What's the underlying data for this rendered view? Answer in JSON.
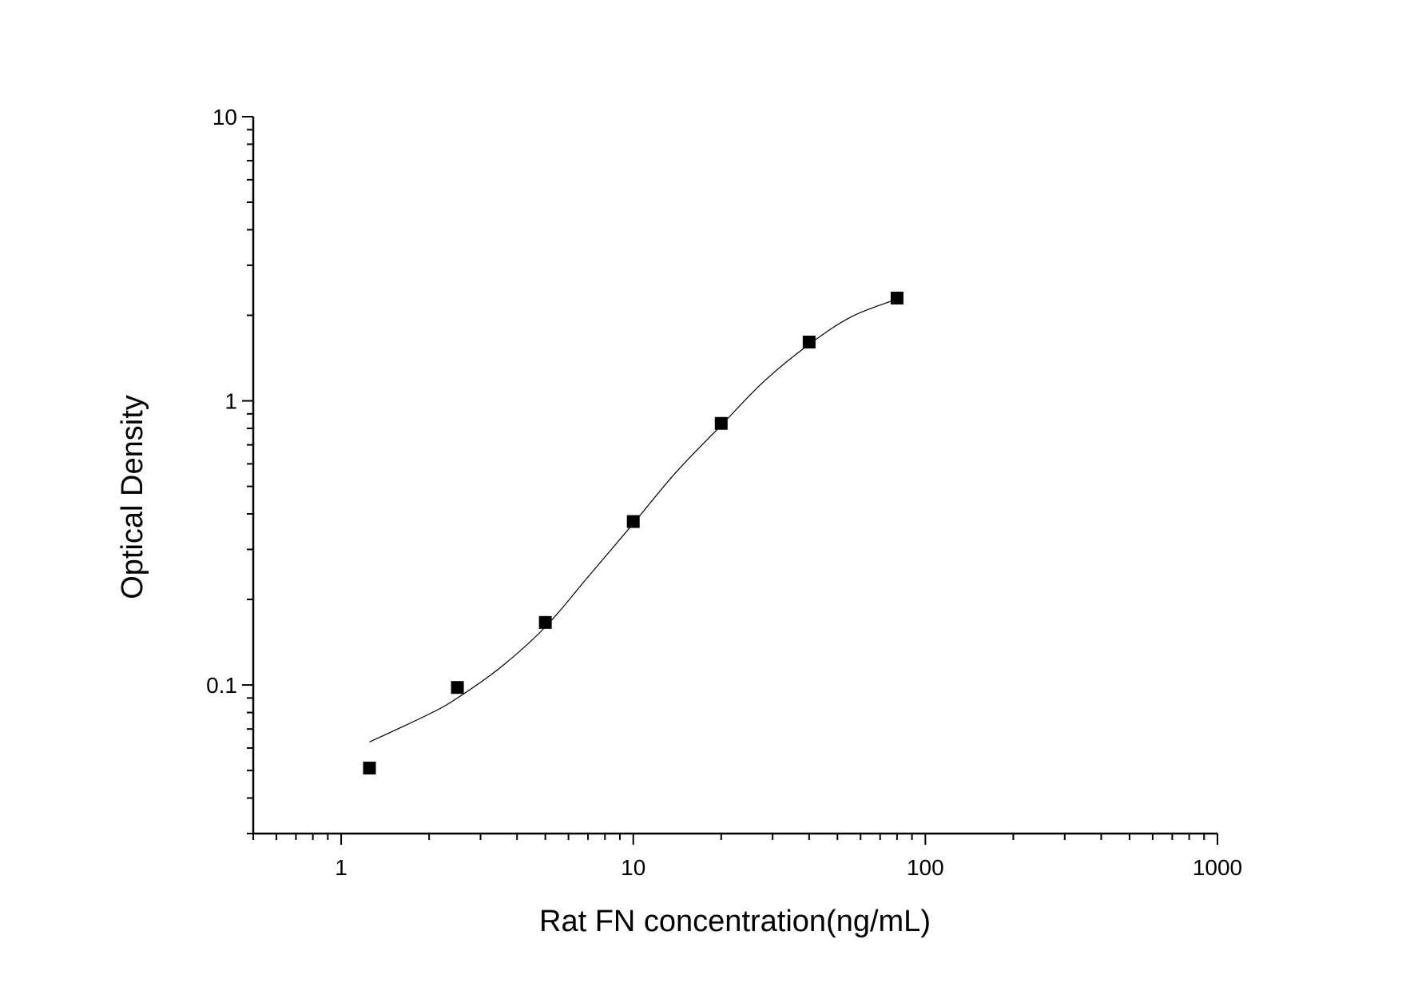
{
  "chart_data": {
    "type": "scatter",
    "title": "",
    "xlabel": "Rat FN concentration(ng/mL)",
    "ylabel": "Optical Density",
    "xscale": "log",
    "yscale": "log",
    "xlim": [
      0.5,
      1000
    ],
    "ylim": [
      0.03,
      10
    ],
    "grid": false,
    "legend": "none",
    "x_ticks": [
      "1",
      "10",
      "100",
      "1000"
    ],
    "y_ticks": [
      "0.1",
      "1",
      "10"
    ],
    "series": [
      {
        "marker": "square",
        "color": "#000000",
        "x": [
          1.25,
          2.5,
          5,
          10,
          20,
          40,
          80
        ],
        "y": [
          0.051,
          0.098,
          0.166,
          0.376,
          0.833,
          1.61,
          2.3
        ]
      }
    ],
    "fit_curve": {
      "color": "#000000",
      "x": [
        1.25,
        2,
        2.5,
        3.5,
        5,
        7,
        10,
        14,
        20,
        28,
        40,
        56,
        80
      ],
      "y": [
        0.063,
        0.079,
        0.09,
        0.115,
        0.16,
        0.24,
        0.37,
        0.56,
        0.82,
        1.17,
        1.58,
        1.98,
        2.28
      ]
    }
  }
}
